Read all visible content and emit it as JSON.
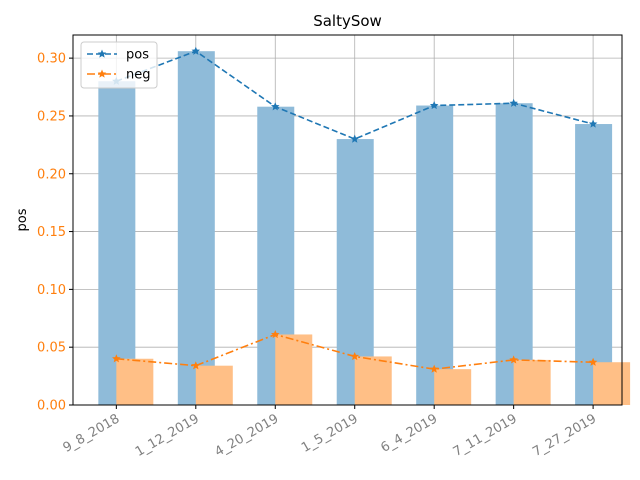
{
  "chart_data": {
    "type": "bar",
    "title": "SaltySow",
    "xlabel": "",
    "ylabel": "pos",
    "categories": [
      "9_8_2018",
      "1_12_2019",
      "4_20_2019",
      "1_5_2019",
      "6_4_2019",
      "7_11_2019",
      "7_27_2019"
    ],
    "ylim": [
      0,
      0.32
    ],
    "yticks": [
      "0.00",
      "0.05",
      "0.10",
      "0.15",
      "0.20",
      "0.25",
      "0.30"
    ],
    "grid": true,
    "legend_position": "top-left",
    "series": [
      {
        "name": "pos",
        "values": [
          0.28,
          0.306,
          0.258,
          0.23,
          0.259,
          0.261,
          0.243
        ],
        "color": "#1f77b4",
        "bar_color": "#8fbbd9",
        "line_style": "dashed",
        "marker": "star"
      },
      {
        "name": "neg",
        "values": [
          0.04,
          0.034,
          0.061,
          0.042,
          0.031,
          0.039,
          0.037
        ],
        "color": "#ff7f0e",
        "bar_color": "#ffbf86",
        "line_style": "dashdot",
        "marker": "star"
      }
    ],
    "tick_colors": {
      "y": "#ff7f0e",
      "x": "#808080"
    }
  }
}
